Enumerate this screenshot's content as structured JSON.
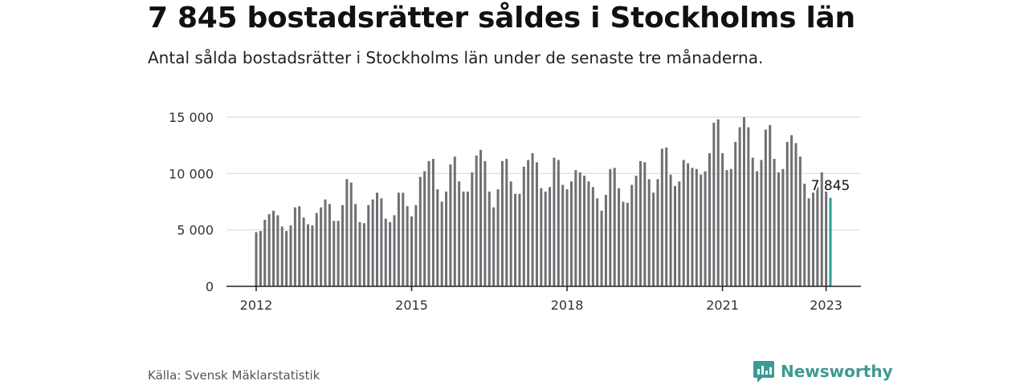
{
  "header": {
    "title": "7 845 bostadsrätter såldes i Stockholms län",
    "subtitle": "Antal sålda bostadsrätter i Stockholms län under de senaste tre månaderna."
  },
  "footer": {
    "source": "Källa: Svensk Mäklarstatistik",
    "brand": "Newsworthy"
  },
  "colors": {
    "bar": "#6f6f73",
    "highlight": "#2a9d92",
    "grid": "#dddddd",
    "axis": "#222222",
    "brand": "#3d9a93"
  },
  "icons": {
    "logo": "newsworthy-logo-icon"
  },
  "chart_data": {
    "type": "bar",
    "title": "",
    "xlabel": "",
    "ylabel": "",
    "ylim": [
      0,
      15000
    ],
    "grid": true,
    "y_ticks": [
      0,
      5000,
      10000,
      15000
    ],
    "y_tick_labels": [
      "0",
      "5 000",
      "10 000",
      "15 000"
    ],
    "x_ticks": [
      "2012",
      "2015",
      "2018",
      "2021",
      "2023"
    ],
    "start": "2012-01",
    "frequency": "monthly",
    "highlight_label": "7 845",
    "values": [
      4800,
      4900,
      5900,
      6400,
      6700,
      6300,
      5300,
      4900,
      5400,
      7000,
      7100,
      6100,
      5500,
      5400,
      6500,
      7000,
      7700,
      7300,
      5800,
      5800,
      7200,
      9500,
      9200,
      7300,
      5700,
      5600,
      7200,
      7700,
      8300,
      7800,
      6000,
      5700,
      6300,
      8300,
      8300,
      7100,
      6200,
      7200,
      9700,
      10200,
      11100,
      11300,
      8600,
      7500,
      8400,
      10800,
      11500,
      9300,
      8400,
      8400,
      10100,
      11600,
      12100,
      11100,
      8400,
      7000,
      8600,
      11100,
      11300,
      9300,
      8200,
      8200,
      10600,
      11200,
      11800,
      11000,
      8700,
      8400,
      8800,
      11400,
      11200,
      9000,
      8600,
      9300,
      10300,
      10100,
      9800,
      9300,
      8800,
      7800,
      6700,
      8100,
      10400,
      10500,
      8700,
      7500,
      7400,
      9000,
      9800,
      11100,
      11000,
      9500,
      8300,
      9500,
      12200,
      12300,
      9900,
      8900,
      9300,
      11200,
      10900,
      10500,
      10400,
      9900,
      10200,
      11800,
      14500,
      14800,
      11800,
      10300,
      10400,
      12800,
      14100,
      15000,
      14100,
      11400,
      10200,
      11200,
      13900,
      14300,
      11300,
      10100,
      10400,
      12800,
      13400,
      12700,
      11500,
      9100,
      7800,
      8300,
      8800,
      10100,
      8400,
      7845
    ]
  }
}
